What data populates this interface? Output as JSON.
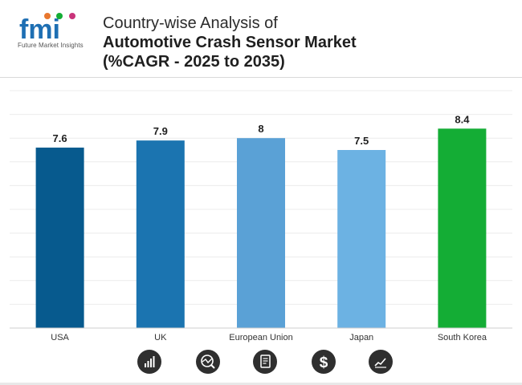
{
  "header": {
    "logo_text": "fmi",
    "logo_tagline": "Future Market Insights",
    "title_line1": "Country-wise Analysis of",
    "title_line2": "Automotive Crash Sensor Market",
    "title_line3": "(%CAGR - 2025 to 2035)"
  },
  "chart_data": {
    "type": "bar",
    "categories": [
      "USA",
      "UK",
      "European Union",
      "Japan",
      "South Korea"
    ],
    "values": [
      7.6,
      7.9,
      8,
      7.5,
      8.4
    ],
    "value_labels": [
      "7.6",
      "7.9",
      "8",
      "7.5",
      "8.4"
    ],
    "colors": [
      "#075a8e",
      "#1b74b0",
      "#5aa1d6",
      "#6cb2e3",
      "#14ad35"
    ],
    "title": "",
    "xlabel": "",
    "ylabel": "",
    "ylim": [
      0,
      10
    ],
    "grid": true,
    "legend": "none"
  },
  "footer": {
    "icons": [
      "bar-growth-icon",
      "chart-analysis-icon",
      "document-icon",
      "dollar-icon",
      "trend-line-icon"
    ]
  }
}
